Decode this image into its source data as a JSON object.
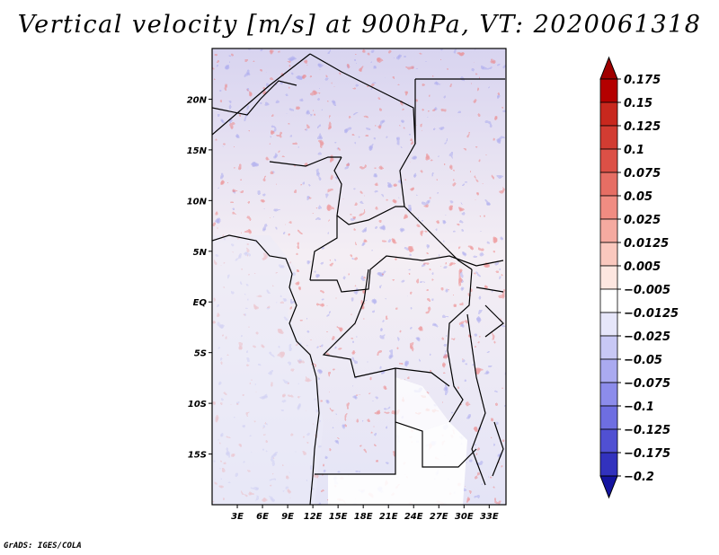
{
  "title": "Vertical velocity [m/s] at 900hPa, VT: 2020061318",
  "credit": "GrADS: IGES/COLA",
  "map": {
    "lat_range": [
      -20,
      25
    ],
    "lon_range": [
      0,
      35
    ],
    "lat_ticks": [
      {
        "label": "20N",
        "lat": 20
      },
      {
        "label": "15N",
        "lat": 15
      },
      {
        "label": "10N",
        "lat": 10
      },
      {
        "label": "5N",
        "lat": 5
      },
      {
        "label": "EQ",
        "lat": 0
      },
      {
        "label": "5S",
        "lat": -5
      },
      {
        "label": "10S",
        "lat": -10
      },
      {
        "label": "15S",
        "lat": -15
      }
    ],
    "lon_ticks": [
      {
        "label": "3E",
        "lon": 3
      },
      {
        "label": "6E",
        "lon": 6
      },
      {
        "label": "9E",
        "lon": 9
      },
      {
        "label": "12E",
        "lon": 12
      },
      {
        "label": "15E",
        "lon": 15
      },
      {
        "label": "18E",
        "lon": 18
      },
      {
        "label": "21E",
        "lon": 21
      },
      {
        "label": "24E",
        "lon": 24
      },
      {
        "label": "27E",
        "lon": 27
      },
      {
        "label": "30E",
        "lon": 30
      },
      {
        "label": "33E",
        "lon": 33
      }
    ]
  },
  "colorbar": {
    "levels": [
      {
        "label": "0.175",
        "color": "#b40000"
      },
      {
        "label": "0.15",
        "color": "#c8281e"
      },
      {
        "label": "0.125",
        "color": "#d23c32"
      },
      {
        "label": "0.1",
        "color": "#dc5046"
      },
      {
        "label": "0.075",
        "color": "#e66e64"
      },
      {
        "label": "0.05",
        "color": "#f08c82"
      },
      {
        "label": "0.025",
        "color": "#f5aaa0"
      },
      {
        "label": "0.0125",
        "color": "#fac8be"
      },
      {
        "label": "0.005",
        "color": "#fde6e0"
      },
      {
        "label": "−0.005",
        "color": "#ffffff"
      },
      {
        "label": "−0.0125",
        "color": "#e6e6fa"
      },
      {
        "label": "−0.025",
        "color": "#c8c8f5"
      },
      {
        "label": "−0.05",
        "color": "#aaaaf0"
      },
      {
        "label": "−0.075",
        "color": "#8c8ceb"
      },
      {
        "label": "−0.1",
        "color": "#6e6ee1"
      },
      {
        "label": "−0.125",
        "color": "#5050d2"
      },
      {
        "label": "−0.175",
        "color": "#3232be"
      },
      {
        "label": "−0.2",
        "color": "#1e1eaa"
      }
    ],
    "low_end_color": "#1414a0",
    "high_end_color": "#a00000"
  }
}
